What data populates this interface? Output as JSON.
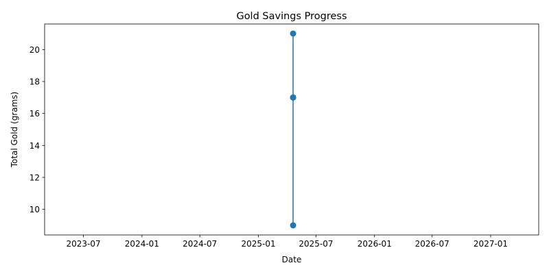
{
  "chart_data": {
    "type": "line",
    "title": "Gold Savings Progress",
    "xlabel": "Date",
    "ylabel": "Total Gold (grams)",
    "x_type": "date",
    "xlim": [
      "2023-03-01",
      "2027-06-01"
    ],
    "ylim": [
      8.4,
      21.6
    ],
    "x_ticks": [
      "2023-07",
      "2024-01",
      "2024-07",
      "2025-01",
      "2025-07",
      "2026-01",
      "2026-07",
      "2027-01"
    ],
    "y_ticks": [
      10,
      12,
      14,
      16,
      18,
      20
    ],
    "grid": false,
    "series": [
      {
        "color": "#1f77b4",
        "marker": "circle",
        "points": [
          {
            "x": "2025-04-20",
            "y": 9
          },
          {
            "x": "2025-04-20",
            "y": 17
          },
          {
            "x": "2025-04-20",
            "y": 21
          },
          {
            "x": "2025-04-20",
            "y": 17
          }
        ]
      }
    ]
  }
}
